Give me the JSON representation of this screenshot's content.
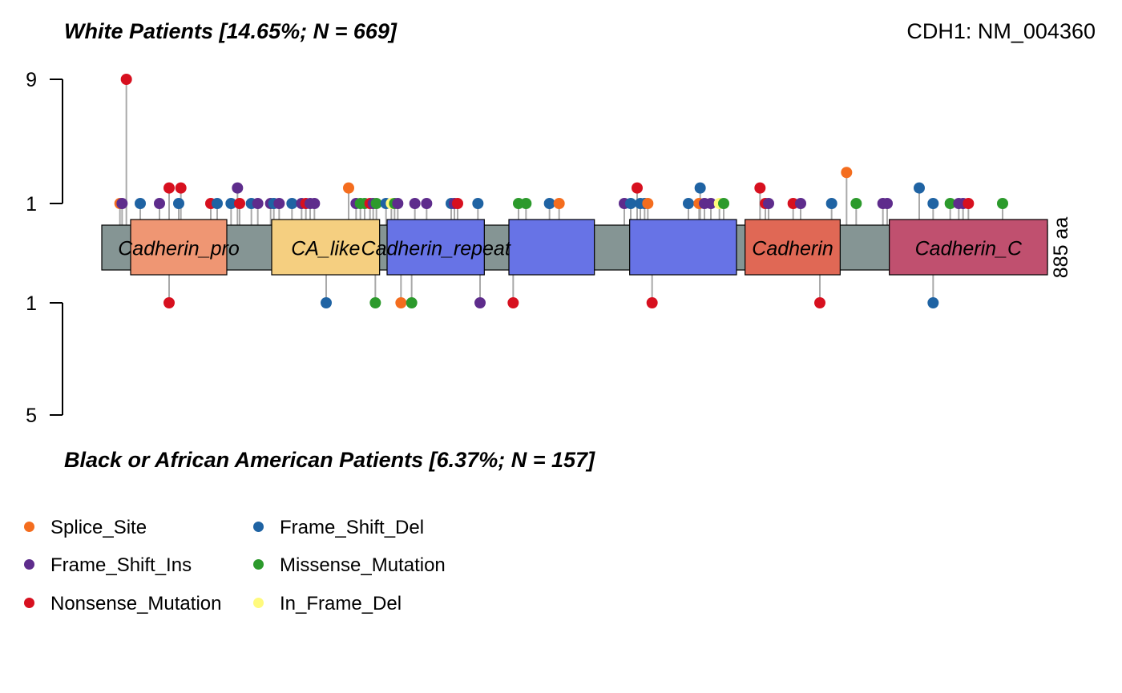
{
  "header": {
    "top_title": "White Patients [14.65%; N = 669]",
    "gene_label": "CDH1: NM_004360",
    "bottom_title": "Black or African American Patients [6.37%; N = 157]"
  },
  "legend": {
    "items": [
      {
        "label": "Splice_Site",
        "color": "#F46D1E"
      },
      {
        "label": "Frame_Shift_Del",
        "color": "#1F63A3"
      },
      {
        "label": "Frame_Shift_Ins",
        "color": "#5E2C8C"
      },
      {
        "label": "Missense_Mutation",
        "color": "#2C9A2C"
      },
      {
        "label": "Nonsense_Mutation",
        "color": "#D7101F"
      },
      {
        "label": "In_Frame_Del",
        "color": "#FFFA7D"
      }
    ]
  },
  "chart_data": {
    "type": "lollipop",
    "gene": "CDH1",
    "transcript": "NM_004360",
    "protein_length": 885,
    "length_label": "885 aa",
    "colors": {
      "Splice_Site": "#F46D1E",
      "Frame_Shift_Del": "#1F63A3",
      "Frame_Shift_Ins": "#5E2C8C",
      "Missense_Mutation": "#2C9A2C",
      "Nonsense_Mutation": "#D7101F",
      "In_Frame_Del": "#FFFA7D"
    },
    "domains": [
      {
        "name": "Cadherin_pro",
        "label": "Cadherin_pro",
        "start": 27,
        "end": 117,
        "color": "#EF9673"
      },
      {
        "name": "CA_like",
        "label": "CA_like",
        "start": 159,
        "end": 260,
        "color": "#F5CF80"
      },
      {
        "name": "Cadherin_repeat",
        "label": "Cadherin_repeat",
        "start": 267,
        "end": 358,
        "color": "#6773E6"
      },
      {
        "name": "Cadherin_repeat",
        "label": "",
        "start": 381,
        "end": 461,
        "color": "#6773E6"
      },
      {
        "name": "Cadherin_repeat",
        "label": "",
        "start": 494,
        "end": 594,
        "color": "#6773E6"
      },
      {
        "name": "Cadherin",
        "label": "Cadherin",
        "start": 602,
        "end": 691,
        "color": "#E06855"
      },
      {
        "name": "Cadherin_C",
        "label": "Cadherin_C",
        "start": 737,
        "end": 885,
        "color": "#C0506F"
      }
    ],
    "top_axis": {
      "ticks": [
        "9",
        "1"
      ]
    },
    "bottom_axis": {
      "ticks": [
        "1",
        "5"
      ]
    },
    "top_group": "White Patients",
    "bottom_group": "Black or African American Patients",
    "top_mutations": [
      {
        "pos": 17,
        "count": 1,
        "type": "Splice_Site"
      },
      {
        "pos": 19,
        "count": 1,
        "type": "Frame_Shift_Ins"
      },
      {
        "pos": 23,
        "count": 9,
        "type": "Nonsense_Mutation"
      },
      {
        "pos": 36,
        "count": 1,
        "type": "Frame_Shift_Del"
      },
      {
        "pos": 54,
        "count": 1,
        "type": "Frame_Shift_Ins"
      },
      {
        "pos": 63,
        "count": 2,
        "type": "Nonsense_Mutation"
      },
      {
        "pos": 72,
        "count": 1,
        "type": "Frame_Shift_Del"
      },
      {
        "pos": 74,
        "count": 2,
        "type": "Nonsense_Mutation"
      },
      {
        "pos": 102,
        "count": 1,
        "type": "Nonsense_Mutation"
      },
      {
        "pos": 108,
        "count": 1,
        "type": "Frame_Shift_Del"
      },
      {
        "pos": 121,
        "count": 1,
        "type": "Frame_Shift_Del"
      },
      {
        "pos": 127,
        "count": 2,
        "type": "Frame_Shift_Ins"
      },
      {
        "pos": 129,
        "count": 1,
        "type": "Nonsense_Mutation"
      },
      {
        "pos": 140,
        "count": 1,
        "type": "Frame_Shift_Del"
      },
      {
        "pos": 146,
        "count": 1,
        "type": "Frame_Shift_Ins"
      },
      {
        "pos": 158,
        "count": 1,
        "type": "Frame_Shift_Ins"
      },
      {
        "pos": 161,
        "count": 1,
        "type": "Frame_Shift_Del"
      },
      {
        "pos": 166,
        "count": 1,
        "type": "Frame_Shift_Ins"
      },
      {
        "pos": 178,
        "count": 1,
        "type": "Frame_Shift_Del"
      },
      {
        "pos": 187,
        "count": 1,
        "type": "Frame_Shift_Ins"
      },
      {
        "pos": 191,
        "count": 1,
        "type": "Nonsense_Mutation"
      },
      {
        "pos": 195,
        "count": 1,
        "type": "Frame_Shift_Ins"
      },
      {
        "pos": 199,
        "count": 1,
        "type": "Frame_Shift_Ins"
      },
      {
        "pos": 231,
        "count": 2,
        "type": "Splice_Site"
      },
      {
        "pos": 238,
        "count": 1,
        "type": "Frame_Shift_Ins"
      },
      {
        "pos": 242,
        "count": 1,
        "type": "Missense_Mutation"
      },
      {
        "pos": 246,
        "count": 1,
        "type": "Missense_Mutation"
      },
      {
        "pos": 251,
        "count": 1,
        "type": "Nonsense_Mutation"
      },
      {
        "pos": 254,
        "count": 1,
        "type": "Frame_Shift_Ins"
      },
      {
        "pos": 257,
        "count": 1,
        "type": "Missense_Mutation"
      },
      {
        "pos": 266,
        "count": 1,
        "type": "Frame_Shift_Del"
      },
      {
        "pos": 271,
        "count": 1,
        "type": "In_Frame_Del"
      },
      {
        "pos": 274,
        "count": 1,
        "type": "Missense_Mutation"
      },
      {
        "pos": 277,
        "count": 1,
        "type": "Frame_Shift_Ins"
      },
      {
        "pos": 293,
        "count": 1,
        "type": "Frame_Shift_Ins"
      },
      {
        "pos": 304,
        "count": 1,
        "type": "Frame_Shift_Ins"
      },
      {
        "pos": 327,
        "count": 1,
        "type": "Frame_Shift_Del"
      },
      {
        "pos": 330,
        "count": 1,
        "type": "Frame_Shift_Ins"
      },
      {
        "pos": 333,
        "count": 1,
        "type": "Nonsense_Mutation"
      },
      {
        "pos": 352,
        "count": 1,
        "type": "Frame_Shift_Del"
      },
      {
        "pos": 390,
        "count": 1,
        "type": "Missense_Mutation"
      },
      {
        "pos": 397,
        "count": 1,
        "type": "Missense_Mutation"
      },
      {
        "pos": 419,
        "count": 1,
        "type": "Frame_Shift_Del"
      },
      {
        "pos": 428,
        "count": 1,
        "type": "Splice_Site"
      },
      {
        "pos": 489,
        "count": 1,
        "type": "Frame_Shift_Ins"
      },
      {
        "pos": 495,
        "count": 1,
        "type": "Frame_Shift_Del"
      },
      {
        "pos": 501,
        "count": 2,
        "type": "Nonsense_Mutation"
      },
      {
        "pos": 504,
        "count": 1,
        "type": "Frame_Shift_Del"
      },
      {
        "pos": 508,
        "count": 1,
        "type": "Frame_Shift_Del"
      },
      {
        "pos": 511,
        "count": 1,
        "type": "Splice_Site"
      },
      {
        "pos": 549,
        "count": 1,
        "type": "Frame_Shift_Del"
      },
      {
        "pos": 559,
        "count": 1,
        "type": "Splice_Site"
      },
      {
        "pos": 560,
        "count": 2,
        "type": "Frame_Shift_Del"
      },
      {
        "pos": 564,
        "count": 1,
        "type": "Frame_Shift_Ins"
      },
      {
        "pos": 570,
        "count": 1,
        "type": "Frame_Shift_Ins"
      },
      {
        "pos": 578,
        "count": 1,
        "type": "In_Frame_Del"
      },
      {
        "pos": 582,
        "count": 1,
        "type": "Missense_Mutation"
      },
      {
        "pos": 616,
        "count": 2,
        "type": "Nonsense_Mutation"
      },
      {
        "pos": 621,
        "count": 1,
        "type": "Nonsense_Mutation"
      },
      {
        "pos": 624,
        "count": 1,
        "type": "Frame_Shift_Ins"
      },
      {
        "pos": 647,
        "count": 1,
        "type": "Nonsense_Mutation"
      },
      {
        "pos": 654,
        "count": 1,
        "type": "Frame_Shift_Ins"
      },
      {
        "pos": 683,
        "count": 1,
        "type": "Frame_Shift_Del"
      },
      {
        "pos": 697,
        "count": 3,
        "type": "Splice_Site"
      },
      {
        "pos": 706,
        "count": 1,
        "type": "Missense_Mutation"
      },
      {
        "pos": 731,
        "count": 1,
        "type": "Frame_Shift_Ins"
      },
      {
        "pos": 735,
        "count": 1,
        "type": "Frame_Shift_Ins"
      },
      {
        "pos": 765,
        "count": 2,
        "type": "Frame_Shift_Del"
      },
      {
        "pos": 778,
        "count": 1,
        "type": "Frame_Shift_Del"
      },
      {
        "pos": 794,
        "count": 1,
        "type": "Missense_Mutation"
      },
      {
        "pos": 802,
        "count": 1,
        "type": "Frame_Shift_Ins"
      },
      {
        "pos": 806,
        "count": 1,
        "type": "Frame_Shift_Ins"
      },
      {
        "pos": 811,
        "count": 1,
        "type": "Nonsense_Mutation"
      },
      {
        "pos": 843,
        "count": 1,
        "type": "Missense_Mutation"
      }
    ],
    "bottom_mutations": [
      {
        "pos": 63,
        "count": 1,
        "type": "Nonsense_Mutation"
      },
      {
        "pos": 210,
        "count": 1,
        "type": "Frame_Shift_Del"
      },
      {
        "pos": 256,
        "count": 1,
        "type": "Missense_Mutation"
      },
      {
        "pos": 280,
        "count": 1,
        "type": "Splice_Site"
      },
      {
        "pos": 290,
        "count": 1,
        "type": "Missense_Mutation"
      },
      {
        "pos": 354,
        "count": 1,
        "type": "Frame_Shift_Ins"
      },
      {
        "pos": 385,
        "count": 1,
        "type": "Nonsense_Mutation"
      },
      {
        "pos": 515,
        "count": 1,
        "type": "Nonsense_Mutation"
      },
      {
        "pos": 672,
        "count": 1,
        "type": "Nonsense_Mutation"
      },
      {
        "pos": 778,
        "count": 1,
        "type": "Frame_Shift_Del"
      }
    ]
  }
}
